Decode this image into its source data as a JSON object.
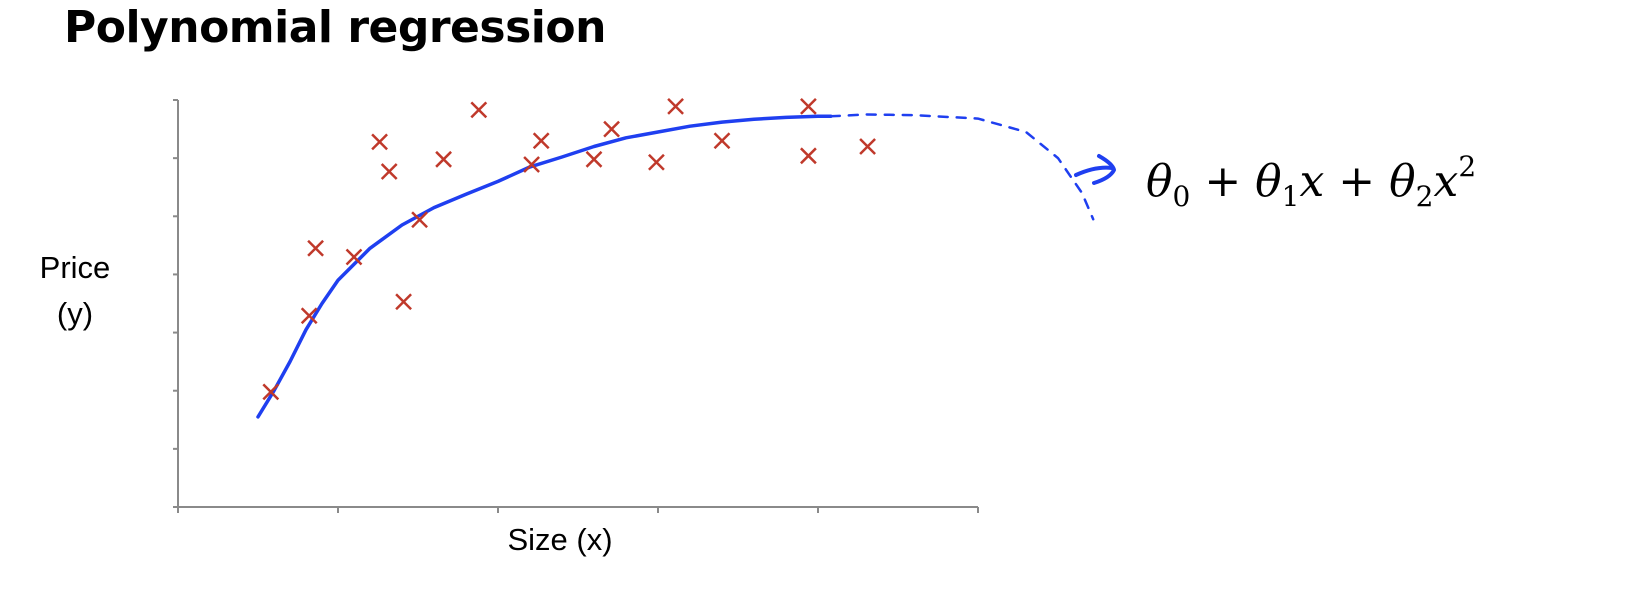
{
  "title": "Polynomial regression",
  "chart_data": {
    "type": "scatter",
    "xlabel": "Size (x)",
    "ylabel": [
      "Price",
      "(y)"
    ],
    "xlim": [
      0,
      5
    ],
    "ylim": [
      0,
      7
    ],
    "x_ticks": 5,
    "y_ticks": 7,
    "grid": false,
    "series": [
      {
        "marker": "x",
        "color": "#c0392b",
        "points": [
          [
            0.58,
            1.98
          ],
          [
            0.82,
            3.29
          ],
          [
            0.86,
            4.45
          ],
          [
            1.1,
            4.3
          ],
          [
            1.26,
            6.28
          ],
          [
            1.32,
            5.77
          ],
          [
            1.41,
            3.53
          ],
          [
            1.51,
            4.94
          ],
          [
            1.66,
            5.98
          ],
          [
            1.88,
            6.83
          ],
          [
            2.21,
            5.89
          ],
          [
            2.27,
            6.3
          ],
          [
            2.6,
            5.98
          ],
          [
            2.71,
            6.5
          ],
          [
            2.99,
            5.93
          ],
          [
            3.11,
            6.89
          ],
          [
            3.4,
            6.3
          ],
          [
            3.94,
            6.89
          ],
          [
            3.94,
            6.04
          ],
          [
            4.31,
            6.2
          ]
        ]
      }
    ],
    "fit_curve": {
      "color": "#1f3ff0",
      "solid_points": [
        [
          0.5,
          1.55
        ],
        [
          0.6,
          2.0
        ],
        [
          0.7,
          2.5
        ],
        [
          0.8,
          3.05
        ],
        [
          0.9,
          3.5
        ],
        [
          1.0,
          3.9
        ],
        [
          1.2,
          4.45
        ],
        [
          1.4,
          4.85
        ],
        [
          1.6,
          5.15
        ],
        [
          1.8,
          5.38
        ],
        [
          2.0,
          5.6
        ],
        [
          2.2,
          5.85
        ],
        [
          2.4,
          6.02
        ],
        [
          2.6,
          6.2
        ],
        [
          2.8,
          6.35
        ],
        [
          3.0,
          6.45
        ],
        [
          3.2,
          6.55
        ],
        [
          3.4,
          6.62
        ],
        [
          3.6,
          6.67
        ],
        [
          3.8,
          6.7
        ],
        [
          4.0,
          6.72
        ],
        [
          4.08,
          6.72
        ]
      ],
      "dashed_points": [
        [
          4.08,
          6.72
        ],
        [
          4.3,
          6.75
        ],
        [
          4.6,
          6.74
        ],
        [
          5.0,
          6.68
        ],
        [
          5.3,
          6.45
        ],
        [
          5.5,
          6.0
        ],
        [
          5.65,
          5.4
        ],
        [
          5.72,
          4.95
        ]
      ]
    },
    "annotation": {
      "color": "#1f3ff0",
      "formula_parts": [
        "θ",
        "0",
        " + θ",
        "1",
        "x + θ",
        "2",
        "x",
        "2"
      ]
    }
  }
}
